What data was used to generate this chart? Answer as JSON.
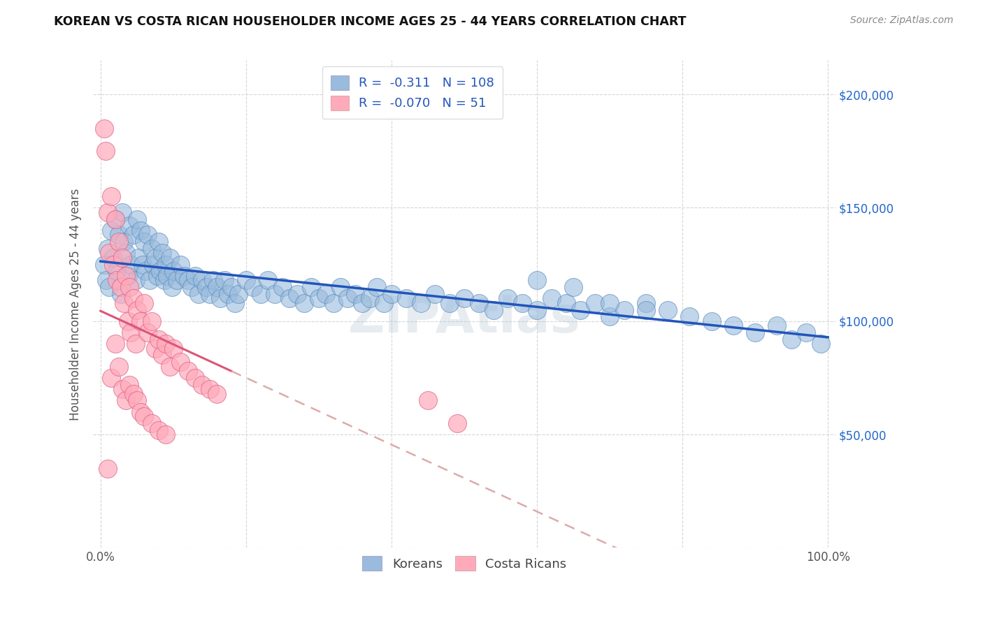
{
  "title": "KOREAN VS COSTA RICAN HOUSEHOLDER INCOME AGES 25 - 44 YEARS CORRELATION CHART",
  "source": "Source: ZipAtlas.com",
  "ylabel": "Householder Income Ages 25 - 44 years",
  "xlim": [
    0,
    1.0
  ],
  "ylim": [
    0,
    215000
  ],
  "korean_color": "#99bbdd",
  "korean_edge_color": "#5588bb",
  "costa_rican_color": "#ffaabb",
  "costa_rican_edge_color": "#dd6688",
  "korean_R": -0.311,
  "korean_N": 108,
  "costa_rican_R": -0.07,
  "costa_rican_N": 51,
  "korean_line_color": "#2255bb",
  "costa_rican_line_color_solid": "#dd5577",
  "costa_rican_line_color_dash": "#ddaaaa",
  "watermark": "ZIPAtlas",
  "korean_x": [
    0.005,
    0.008,
    0.01,
    0.012,
    0.015,
    0.018,
    0.02,
    0.022,
    0.025,
    0.028,
    0.03,
    0.032,
    0.035,
    0.038,
    0.04,
    0.042,
    0.045,
    0.048,
    0.05,
    0.052,
    0.055,
    0.058,
    0.06,
    0.062,
    0.065,
    0.068,
    0.07,
    0.072,
    0.075,
    0.078,
    0.08,
    0.082,
    0.085,
    0.088,
    0.09,
    0.092,
    0.095,
    0.098,
    0.1,
    0.105,
    0.11,
    0.115,
    0.12,
    0.125,
    0.13,
    0.135,
    0.14,
    0.145,
    0.15,
    0.155,
    0.16,
    0.165,
    0.17,
    0.175,
    0.18,
    0.185,
    0.19,
    0.2,
    0.21,
    0.22,
    0.23,
    0.24,
    0.25,
    0.26,
    0.27,
    0.28,
    0.29,
    0.3,
    0.31,
    0.32,
    0.33,
    0.34,
    0.35,
    0.36,
    0.37,
    0.38,
    0.39,
    0.4,
    0.42,
    0.44,
    0.46,
    0.48,
    0.5,
    0.52,
    0.54,
    0.56,
    0.58,
    0.6,
    0.62,
    0.64,
    0.66,
    0.68,
    0.7,
    0.72,
    0.75,
    0.78,
    0.81,
    0.84,
    0.87,
    0.9,
    0.93,
    0.95,
    0.97,
    0.99,
    0.6,
    0.65,
    0.7,
    0.75
  ],
  "korean_y": [
    125000,
    118000,
    132000,
    115000,
    140000,
    128000,
    145000,
    122000,
    138000,
    112000,
    148000,
    135000,
    130000,
    120000,
    142000,
    125000,
    138000,
    118000,
    145000,
    128000,
    140000,
    125000,
    135000,
    122000,
    138000,
    118000,
    132000,
    125000,
    128000,
    120000,
    135000,
    122000,
    130000,
    118000,
    125000,
    120000,
    128000,
    115000,
    122000,
    118000,
    125000,
    120000,
    118000,
    115000,
    120000,
    112000,
    118000,
    115000,
    112000,
    118000,
    115000,
    110000,
    118000,
    112000,
    115000,
    108000,
    112000,
    118000,
    115000,
    112000,
    118000,
    112000,
    115000,
    110000,
    112000,
    108000,
    115000,
    110000,
    112000,
    108000,
    115000,
    110000,
    112000,
    108000,
    110000,
    115000,
    108000,
    112000,
    110000,
    108000,
    112000,
    108000,
    110000,
    108000,
    105000,
    110000,
    108000,
    105000,
    110000,
    108000,
    105000,
    108000,
    102000,
    105000,
    108000,
    105000,
    102000,
    100000,
    98000,
    95000,
    98000,
    92000,
    95000,
    90000,
    118000,
    115000,
    108000,
    105000
  ],
  "costa_rican_x": [
    0.005,
    0.007,
    0.01,
    0.012,
    0.015,
    0.018,
    0.02,
    0.022,
    0.025,
    0.028,
    0.03,
    0.032,
    0.035,
    0.038,
    0.04,
    0.042,
    0.045,
    0.048,
    0.05,
    0.055,
    0.06,
    0.065,
    0.07,
    0.075,
    0.08,
    0.085,
    0.09,
    0.095,
    0.1,
    0.11,
    0.12,
    0.13,
    0.14,
    0.15,
    0.16,
    0.015,
    0.02,
    0.025,
    0.03,
    0.035,
    0.04,
    0.045,
    0.05,
    0.055,
    0.06,
    0.07,
    0.08,
    0.09,
    0.45,
    0.49,
    0.01
  ],
  "costa_rican_y": [
    185000,
    175000,
    148000,
    130000,
    155000,
    125000,
    145000,
    118000,
    135000,
    115000,
    128000,
    108000,
    120000,
    100000,
    115000,
    95000,
    110000,
    90000,
    105000,
    100000,
    108000,
    95000,
    100000,
    88000,
    92000,
    85000,
    90000,
    80000,
    88000,
    82000,
    78000,
    75000,
    72000,
    70000,
    68000,
    75000,
    90000,
    80000,
    70000,
    65000,
    72000,
    68000,
    65000,
    60000,
    58000,
    55000,
    52000,
    50000,
    65000,
    55000,
    35000
  ]
}
